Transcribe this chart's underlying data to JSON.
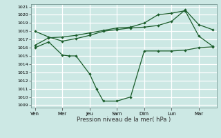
{
  "xlabel": "Pression niveau de la mer( hPa )",
  "ylim": [
    1009,
    1021
  ],
  "yticks": [
    1009,
    1010,
    1011,
    1012,
    1013,
    1014,
    1015,
    1016,
    1017,
    1018,
    1019,
    1020,
    1021
  ],
  "xtick_labels": [
    "Ven",
    "Mer",
    "Jeu",
    "Sam",
    "Dim",
    "Lun",
    "Mar"
  ],
  "xtick_positions": [
    0,
    2,
    4,
    6,
    8,
    10,
    12
  ],
  "background_color": "#cce8e4",
  "grid_color": "#ffffff",
  "line_color": "#1a5c2a",
  "line1_x": [
    0,
    1,
    2,
    2.5,
    3,
    4,
    4.5,
    5,
    6,
    7,
    8,
    9,
    10,
    11,
    12,
    13
  ],
  "line1_y": [
    1016.0,
    1016.7,
    1015.1,
    1015.0,
    1015.0,
    1012.8,
    1011.0,
    1009.5,
    1009.5,
    1010.0,
    1015.6,
    1015.6,
    1015.6,
    1015.7,
    1016.0,
    1016.1
  ],
  "line2_x": [
    0,
    1,
    2,
    3,
    4,
    5,
    6,
    7,
    8,
    9,
    10,
    11,
    12,
    13
  ],
  "line2_y": [
    1016.3,
    1017.2,
    1017.3,
    1017.5,
    1017.8,
    1018.1,
    1018.4,
    1018.5,
    1019.0,
    1020.0,
    1020.2,
    1020.5,
    1017.4,
    1016.2
  ],
  "line3_x": [
    0,
    1,
    2,
    3,
    4,
    5,
    6,
    7,
    8,
    9,
    10,
    11,
    12,
    13
  ],
  "line3_y": [
    1018.0,
    1017.3,
    1016.8,
    1017.1,
    1017.5,
    1018.0,
    1018.2,
    1018.4,
    1018.5,
    1018.7,
    1019.2,
    1020.6,
    1018.8,
    1018.2
  ],
  "figsize": [
    3.2,
    2.0
  ],
  "dpi": 100
}
